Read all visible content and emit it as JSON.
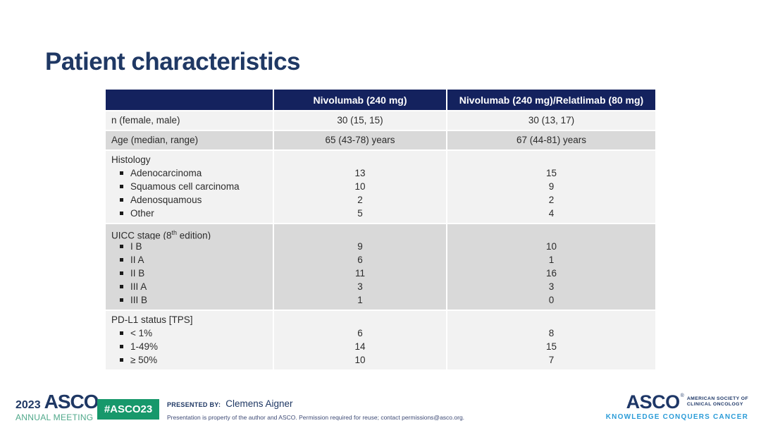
{
  "slide": {
    "title": "Patient characteristics"
  },
  "colors": {
    "title_navy": "#1F3864",
    "table_header_bg": "#14225E",
    "table_header_text": "#FFFFFF",
    "row_light": "#F2F2F2",
    "row_dark": "#D9D9D9",
    "body_text": "#2B2B2B",
    "hashtag_green": "#17986B",
    "annual_meeting_green": "#4FA88A",
    "tagline_blue": "#2B9CD8"
  },
  "chart_data": {
    "type": "table",
    "title": "Patient characteristics",
    "columns": [
      "",
      "Nivolumab (240 mg)",
      "Nivolumab (240 mg)/Relatlimab (80 mg)"
    ],
    "rows": [
      [
        "n (female, male)",
        "30 (15, 15)",
        "30 (13, 17)"
      ],
      [
        "Age (median, range)",
        "65 (43-78) years",
        "67 (44-81) years"
      ],
      [
        "Histology",
        "",
        ""
      ],
      [
        "Adenocarcinoma",
        "13",
        "15"
      ],
      [
        "Squamous cell carcinoma",
        "10",
        "9"
      ],
      [
        "Adenosquamous",
        "2",
        "2"
      ],
      [
        "Other",
        "5",
        "4"
      ],
      [
        "UICC stage (8th edition)",
        "",
        ""
      ],
      [
        "I B",
        "9",
        "10"
      ],
      [
        "II A",
        "6",
        "1"
      ],
      [
        "II B",
        "11",
        "16"
      ],
      [
        "III A",
        "3",
        "3"
      ],
      [
        "III B",
        "1",
        "0"
      ],
      [
        "PD-L1 status [TPS]",
        "",
        ""
      ],
      [
        "< 1%",
        "6",
        "8"
      ],
      [
        "1-49%",
        "14",
        "15"
      ],
      [
        "≥ 50%",
        "10",
        "7"
      ]
    ]
  },
  "table": {
    "columns": [
      "",
      "Nivolumab (240 mg)",
      "Nivolumab (240 mg)/Relatlimab (80 mg)"
    ],
    "sections": [
      {
        "id": "n",
        "label": "n (female, male)",
        "values": [
          "30 (15, 15)",
          "30 (13, 17)"
        ],
        "shade": "light"
      },
      {
        "id": "age",
        "label": "Age (median, range)",
        "values": [
          "65 (43-78) years",
          "67 (44-81) years"
        ],
        "shade": "dark"
      },
      {
        "id": "histology",
        "label": "Histology",
        "shade": "light",
        "items": [
          {
            "label": "Adenocarcinoma",
            "values": [
              "13",
              "15"
            ]
          },
          {
            "label": "Squamous cell carcinoma",
            "values": [
              "10",
              "9"
            ]
          },
          {
            "label": "Adenosquamous",
            "values": [
              "2",
              "2"
            ]
          },
          {
            "label": "Other",
            "values": [
              "5",
              "4"
            ]
          }
        ]
      },
      {
        "id": "uicc-stage",
        "label": "UICC stage (8th edition)",
        "label_parts": [
          {
            "text": "UICC stage (8"
          },
          {
            "text": "th",
            "sup": true
          },
          {
            "text": " edition)"
          }
        ],
        "shade": "dark",
        "items": [
          {
            "label": "I B",
            "values": [
              "9",
              "10"
            ]
          },
          {
            "label": "II A",
            "values": [
              "6",
              "1"
            ]
          },
          {
            "label": "II B",
            "values": [
              "11",
              "16"
            ]
          },
          {
            "label": "III A",
            "values": [
              "3",
              "3"
            ]
          },
          {
            "label": "III B",
            "values": [
              "1",
              "0"
            ]
          }
        ]
      },
      {
        "id": "pdl1",
        "label": "PD-L1 status [TPS]",
        "shade": "light",
        "items": [
          {
            "label": "< 1%",
            "values": [
              "6",
              "8"
            ]
          },
          {
            "label": "1-49%",
            "values": [
              "14",
              "15"
            ]
          },
          {
            "label": "≥ 50%",
            "values": [
              "10",
              "7"
            ]
          }
        ]
      }
    ]
  },
  "footer": {
    "meeting_logo": {
      "year": "2023",
      "asco": "ASCO",
      "registered": "®",
      "subtitle": "ANNUAL MEETING"
    },
    "hashtag": "#ASCO23",
    "presented_by_label": "PRESENTED BY:",
    "presenter": "Clemens Aigner",
    "disclaimer": "Presentation is property of the author and ASCO. Permission required for reuse; contact permissions@asco.org.",
    "asco_logo": {
      "name": "ASCO",
      "registered": "®",
      "society_line1": "AMERICAN SOCIETY OF",
      "society_line2": "CLINICAL ONCOLOGY",
      "tagline": "KNOWLEDGE CONQUERS CANCER"
    }
  }
}
